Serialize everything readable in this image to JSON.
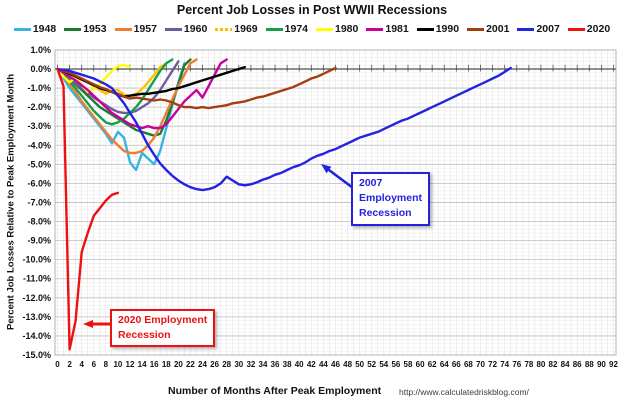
{
  "chart_title": "Percent Job Losses in Post WWII Recessions",
  "x_axis_title": "Number of Months After Peak Employment",
  "source_url": "http://www.calculatedriskblog.com/",
  "chart_data": {
    "type": "line",
    "title": "Percent Job Losses in Post WWII Recessions",
    "xlabel": "Number of Months After Peak Employment",
    "ylabel": "Percent Job Losses Relative to Peak Employment Month",
    "x_unit": "months after employment peak",
    "y_unit": "percent job losses relative to peak employment month",
    "xlim": [
      0,
      92
    ],
    "ylim": [
      -15,
      1
    ],
    "x_tick_step": 2,
    "y_tick_step": 1,
    "grid": true,
    "legend_position": "top",
    "y_tick_labels": [
      "1.0%",
      "0.0%",
      "-1.0%",
      "-2.0%",
      "-3.0%",
      "-4.0%",
      "-5.0%",
      "-6.0%",
      "-7.0%",
      "-8.0%",
      "-9.0%",
      "-10.0%",
      "-11.0%",
      "-12.0%",
      "-13.0%",
      "-14.0%",
      "-15.0%"
    ],
    "x_tick_labels": [
      "0",
      "2",
      "4",
      "6",
      "8",
      "10",
      "12",
      "14",
      "16",
      "18",
      "20",
      "22",
      "24",
      "26",
      "28",
      "30",
      "32",
      "34",
      "36",
      "38",
      "40",
      "42",
      "44",
      "46",
      "48",
      "50",
      "52",
      "54",
      "56",
      "58",
      "60",
      "62",
      "64",
      "66",
      "68",
      "70",
      "72",
      "74",
      "76",
      "78",
      "80",
      "82",
      "84",
      "86",
      "88",
      "90",
      "92"
    ],
    "series": [
      {
        "name": "1948",
        "color": "#36B4E4",
        "dash": false,
        "values": [
          0,
          -0.5,
          -1.0,
          -1.4,
          -1.8,
          -2.2,
          -2.6,
          -3.0,
          -3.4,
          -3.9,
          -3.3,
          -3.6,
          -4.9,
          -5.3,
          -4.4,
          -4.7,
          -5.0,
          -4.3,
          -3.1,
          -1.9,
          -0.7,
          0.3
        ]
      },
      {
        "name": "1953",
        "color": "#1E7B2E",
        "dash": false,
        "values": [
          0,
          -0.25,
          -0.5,
          -0.8,
          -1.1,
          -1.4,
          -1.7,
          -2.0,
          -2.2,
          -2.4,
          -2.6,
          -2.8,
          -3.0,
          -3.2,
          -3.3,
          -3.4,
          -3.5,
          -3.4,
          -2.7,
          -1.8,
          -0.8,
          0.2,
          0.5
        ]
      },
      {
        "name": "1957",
        "color": "#ED7D31",
        "dash": false,
        "values": [
          0,
          -0.4,
          -0.8,
          -1.2,
          -1.7,
          -2.1,
          -2.5,
          -2.9,
          -3.3,
          -3.7,
          -4.0,
          -4.3,
          -4.4,
          -4.4,
          -4.3,
          -4.0,
          -3.6,
          -3.0,
          -2.3,
          -1.6,
          -0.9,
          -0.3,
          0.3,
          0.5
        ]
      },
      {
        "name": "1960",
        "color": "#6F5B9C",
        "dash": false,
        "values": [
          0,
          -0.25,
          -0.5,
          -0.75,
          -1.0,
          -1.25,
          -1.5,
          -1.7,
          -1.9,
          -2.1,
          -2.25,
          -2.3,
          -2.3,
          -2.2,
          -2.0,
          -1.8,
          -1.5,
          -1.1,
          -0.6,
          -0.1,
          0.4
        ]
      },
      {
        "name": "1969",
        "color": "#FFC000",
        "dash": true,
        "values": [
          0,
          -0.1,
          -0.25,
          -0.4,
          -0.55,
          -0.7,
          -0.9,
          -1.1,
          -1.3,
          -1.15,
          -1.1,
          -1.35,
          -1.4,
          -1.3,
          -1.05,
          -0.7,
          -0.3,
          0.1,
          0.3
        ]
      },
      {
        "name": "1974",
        "color": "#12A04B",
        "dash": false,
        "values": [
          0,
          -0.3,
          -0.65,
          -1.0,
          -1.4,
          -1.8,
          -2.2,
          -2.5,
          -2.8,
          -2.9,
          -2.8,
          -2.6,
          -2.3,
          -2.0,
          -1.6,
          -1.1,
          -0.6,
          -0.1,
          0.3,
          0.5
        ]
      },
      {
        "name": "1980",
        "color": "#FFFF00",
        "dash": false,
        "values": [
          0,
          -0.4,
          -0.7,
          -0.45,
          -0.85,
          -1.2,
          -1.05,
          -0.8,
          -0.45,
          -0.1,
          0.15,
          0.2,
          0.1
        ]
      },
      {
        "name": "1981",
        "color": "#C9009E",
        "dash": false,
        "values": [
          0,
          -0.2,
          -0.4,
          -0.6,
          -0.85,
          -1.1,
          -1.4,
          -1.7,
          -2.0,
          -2.3,
          -2.5,
          -2.7,
          -2.9,
          -3.0,
          -3.1,
          -3.0,
          -3.1,
          -3.1,
          -2.9,
          -2.5,
          -2.1,
          -1.7,
          -1.4,
          -1.1,
          -1.5,
          -0.9,
          -0.3,
          0.3,
          0.5
        ]
      },
      {
        "name": "1990",
        "color": "#000000",
        "dash": false,
        "values": [
          0,
          -0.1,
          -0.25,
          -0.4,
          -0.55,
          -0.7,
          -0.85,
          -1.0,
          -1.1,
          -1.2,
          -1.35,
          -1.45,
          -1.4,
          -1.35,
          -1.3,
          -1.3,
          -1.25,
          -1.2,
          -1.15,
          -1.05,
          -1.0,
          -0.9,
          -0.8,
          -0.7,
          -0.6,
          -0.5,
          -0.4,
          -0.3,
          -0.2,
          -0.1,
          0.0,
          0.1
        ]
      },
      {
        "name": "2001",
        "color": "#A33E0F",
        "dash": false,
        "values": [
          0,
          -0.1,
          -0.2,
          -0.35,
          -0.5,
          -0.65,
          -0.8,
          -0.95,
          -1.05,
          -1.2,
          -1.3,
          -1.45,
          -1.55,
          -1.5,
          -1.55,
          -1.6,
          -1.65,
          -1.6,
          -1.65,
          -1.75,
          -1.9,
          -2.0,
          -2.0,
          -2.05,
          -2.0,
          -2.05,
          -2.0,
          -1.95,
          -1.9,
          -1.8,
          -1.75,
          -1.7,
          -1.6,
          -1.5,
          -1.45,
          -1.35,
          -1.25,
          -1.15,
          -1.05,
          -0.95,
          -0.8,
          -0.65,
          -0.5,
          -0.4,
          -0.25,
          -0.1,
          0.05
        ]
      },
      {
        "name": "2007",
        "color": "#2323DF",
        "dash": false,
        "values": [
          0,
          -0.05,
          -0.1,
          -0.2,
          -0.3,
          -0.4,
          -0.5,
          -0.65,
          -0.8,
          -1.0,
          -1.4,
          -1.8,
          -2.3,
          -2.8,
          -3.4,
          -4.0,
          -4.5,
          -4.95,
          -5.3,
          -5.6,
          -5.85,
          -6.05,
          -6.2,
          -6.3,
          -6.35,
          -6.3,
          -6.2,
          -6.0,
          -5.65,
          -5.85,
          -6.05,
          -6.1,
          -6.05,
          -5.95,
          -5.8,
          -5.7,
          -5.55,
          -5.45,
          -5.3,
          -5.15,
          -5.05,
          -4.9,
          -4.7,
          -4.55,
          -4.45,
          -4.3,
          -4.2,
          -4.05,
          -3.9,
          -3.75,
          -3.6,
          -3.5,
          -3.4,
          -3.3,
          -3.15,
          -3.0,
          -2.85,
          -2.7,
          -2.6,
          -2.45,
          -2.3,
          -2.15,
          -2.0,
          -1.85,
          -1.7,
          -1.55,
          -1.4,
          -1.25,
          -1.1,
          -0.95,
          -0.8,
          -0.65,
          -0.5,
          -0.35,
          -0.15,
          0.05
        ]
      },
      {
        "name": "2020",
        "color": "#EE1111",
        "dash": false,
        "values": [
          0,
          -0.9,
          -14.7,
          -13.2,
          -9.6,
          -8.6,
          -7.7,
          -7.3,
          -6.9,
          -6.6,
          -6.5
        ]
      }
    ],
    "annotations": [
      {
        "id": "2007",
        "text_lines": [
          "2007",
          "Employment",
          "Recession"
        ],
        "color": "#2323DF",
        "arrow": true
      },
      {
        "id": "2020",
        "text_lines": [
          "2020 Employment",
          "Recession"
        ],
        "color": "#EE1111",
        "arrow": true
      }
    ]
  }
}
